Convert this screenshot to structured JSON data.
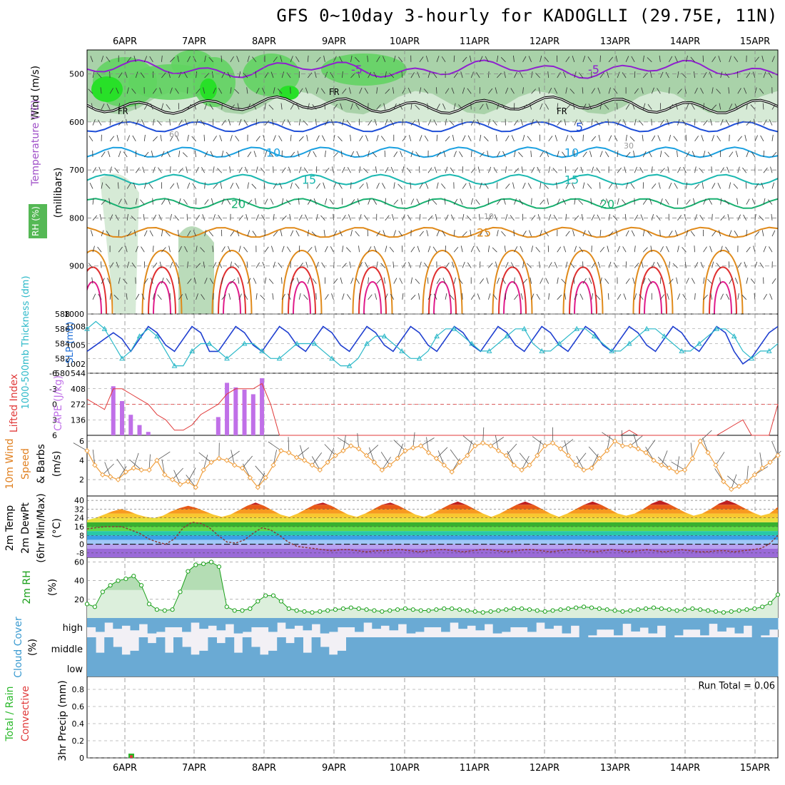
{
  "title": "GFS 0~10day 3-hourly for KADOGLLI (29.75E, 11N)",
  "colors": {
    "rh_light": "#d6ead6",
    "rh_mid": "#a9d2a9",
    "rh_green": "#5fd35f",
    "rh_bright": "#28e028",
    "temp_purple": "#8f1fcf",
    "temp_blue": "#1f4fd8",
    "temp_cyan": "#1aa0e0",
    "temp_teal": "#1ab8b0",
    "temp_green": "#18b070",
    "temp_orange": "#e08a1a",
    "temp_red": "#e03030",
    "temp_magenta": "#e01a8a",
    "freezing": "#000000",
    "slp": "#1f3fd0",
    "thickness": "#2ab8c8",
    "cape": "#c070e8",
    "lifted": "#e03a3a",
    "wind": "#f0a040",
    "dewpoint": "#8a3a3a",
    "rh2m": "#1aa01a",
    "cloud": "#6aaad4",
    "precip_total": "#2ab82a",
    "precip_conv": "#e03a3a",
    "grid": "#888888"
  },
  "chart_data": [
    {
      "type": "heatmap",
      "panel": "upper_air",
      "ylabel": "(millibars)",
      "side_labels": [
        "Wind (m/s)",
        "Temperature (°C)",
        "RH (%)"
      ],
      "rh_legend": "RH (%)",
      "pressure_ticks": [
        500,
        600,
        700,
        800,
        900,
        1000
      ],
      "ylim": [
        1000,
        450
      ],
      "isotherms": [
        {
          "label": "-5",
          "level": 490,
          "color_key": "temp_purple"
        },
        {
          "label": "5",
          "level": 610,
          "color_key": "temp_blue"
        },
        {
          "label": "10",
          "level": 663,
          "color_key": "temp_cyan"
        },
        {
          "label": "15",
          "level": 720,
          "color_key": "temp_teal"
        },
        {
          "label": "20",
          "level": 770,
          "color_key": "temp_green"
        },
        {
          "label": "25",
          "level": 830,
          "color_key": "temp_orange"
        }
      ],
      "freezing_label": "FR",
      "freezing_level_mb": 565,
      "rh_contour_labels": [
        "30",
        "10",
        "60"
      ]
    },
    {
      "type": "line",
      "panel": "slp_thickness",
      "series": [
        {
          "name": "SLP (mb)",
          "color_key": "slp",
          "values": [
            1004,
            1005,
            1006,
            1007,
            1006,
            1004,
            1006,
            1008,
            1007,
            1005,
            1004,
            1006,
            1008,
            1007,
            1004,
            1004,
            1006,
            1008,
            1007,
            1005,
            1004,
            1006,
            1008,
            1007,
            1005,
            1004,
            1006,
            1008,
            1007,
            1005,
            1004,
            1006,
            1008,
            1007,
            1005,
            1004,
            1006,
            1008,
            1007,
            1005,
            1004,
            1006,
            1008,
            1007,
            1005,
            1004,
            1006,
            1008,
            1007,
            1005,
            1004,
            1006,
            1008,
            1007,
            1005,
            1004,
            1006,
            1008,
            1007,
            1005,
            1004,
            1006,
            1008,
            1007,
            1005,
            1004,
            1006,
            1008,
            1007,
            1005,
            1004,
            1006,
            1008,
            1007,
            1004,
            1002,
            1003,
            1005,
            1007,
            1008
          ]
        },
        {
          "name": "1000-500mb thickness (dm)",
          "color_key": "thickness",
          "values": [
            586,
            587,
            586,
            584,
            582,
            583,
            585,
            586,
            585,
            583,
            581,
            581,
            583,
            584,
            584,
            583,
            582,
            583,
            584,
            584,
            583,
            582,
            582,
            583,
            584,
            584,
            584,
            583,
            582,
            581,
            581,
            582,
            584,
            585,
            585,
            584,
            583,
            582,
            582,
            583,
            585,
            586,
            586,
            585,
            584,
            583,
            583,
            584,
            585,
            586,
            586,
            584,
            583,
            583,
            584,
            585,
            586,
            586,
            585,
            584,
            583,
            583,
            584,
            585,
            586,
            586,
            585,
            584,
            583,
            583,
            584,
            585,
            586,
            586,
            585,
            583,
            582,
            583,
            583,
            584
          ]
        }
      ],
      "thickness_ticks": [
        580,
        582,
        584,
        586,
        588
      ],
      "slp_ticks": [
        1002,
        1005,
        1008
      ],
      "ylabel_left": "1000-500mb Thickness (dm)",
      "ylabel_right": "SLP (mb)"
    },
    {
      "type": "bar",
      "panel": "cape_li",
      "series": [
        {
          "name": "CAPE (J/kg)",
          "color_key": "cape",
          "values": [
            0,
            0,
            0,
            430,
            300,
            180,
            90,
            30,
            0,
            0,
            0,
            0,
            0,
            0,
            0,
            160,
            460,
            420,
            400,
            360,
            500,
            0,
            0,
            0,
            0,
            0,
            0,
            0,
            0,
            0,
            0,
            0,
            0,
            0,
            0,
            0,
            0,
            0,
            0,
            0,
            0,
            0,
            0,
            0,
            0,
            0,
            0,
            0,
            0,
            0,
            0,
            0,
            0,
            0,
            0,
            0,
            0,
            0,
            0,
            0,
            0,
            0,
            0,
            0,
            0,
            0,
            0,
            0,
            0,
            0,
            0,
            0,
            0,
            0,
            0,
            0,
            0,
            0,
            0,
            0
          ]
        },
        {
          "name": "Lifted Index",
          "color_key": "lifted",
          "values": [
            -1,
            0,
            1,
            -3,
            -3,
            -2,
            -1,
            0,
            2,
            3,
            5,
            5,
            4,
            2,
            1,
            0,
            -2,
            -3,
            -3,
            -3,
            -4,
            0,
            6,
            7,
            7,
            7,
            7,
            7,
            7,
            7,
            7,
            7,
            7,
            7,
            7,
            7,
            7,
            7,
            7,
            7,
            7,
            7,
            7,
            7,
            7,
            7,
            7,
            7,
            7,
            7,
            7,
            7,
            7,
            7,
            7,
            7,
            7,
            7,
            7,
            7,
            7,
            7,
            5,
            6,
            7,
            7,
            7,
            7,
            7,
            7,
            7,
            7,
            7,
            5,
            4,
            3,
            7,
            7,
            7,
            0
          ]
        }
      ],
      "cape_ticks": [
        136,
        272,
        408,
        544
      ],
      "li_ticks": [
        -6,
        -3,
        0,
        3,
        6
      ],
      "ylabel_left": "Lifted Index",
      "ylabel_right": "CAPE (J/kg)"
    },
    {
      "type": "line",
      "panel": "wind10m",
      "series": [
        {
          "name": "10m Wind Speed",
          "color_key": "wind",
          "values": [
            5.0,
            3.5,
            2.5,
            2.3,
            2.0,
            2.8,
            3.2,
            3.0,
            3.0,
            4.0,
            2.5,
            2.0,
            1.5,
            1.8,
            1.2,
            3.0,
            3.8,
            4.2,
            4.0,
            3.5,
            3.2,
            2.2,
            1.2,
            2.2,
            3.5,
            5.0,
            4.8,
            4.3,
            4.0,
            3.5,
            3.0,
            3.8,
            4.5,
            5.0,
            5.5,
            5.2,
            4.5,
            3.8,
            3.0,
            3.5,
            4.2,
            5.0,
            5.3,
            5.5,
            4.8,
            4.2,
            3.5,
            2.8,
            3.8,
            4.5,
            5.5,
            5.8,
            5.5,
            5.0,
            4.5,
            3.5,
            3.0,
            3.5,
            4.5,
            5.5,
            5.8,
            5.2,
            4.5,
            3.5,
            3.0,
            3.2,
            4.2,
            5.0,
            6.0,
            5.5,
            5.5,
            5.2,
            4.8,
            4.0,
            3.5,
            3.2,
            2.8,
            3.0,
            4.2,
            6.0,
            4.8,
            3.5,
            1.8,
            1.0,
            1.3,
            1.8,
            2.5,
            3.2,
            3.8,
            4.5
          ]
        }
      ],
      "ticks": [
        2,
        4,
        6
      ],
      "ylabel": "10m Wind Speed & Barbs (m/s)"
    },
    {
      "type": "area",
      "panel": "temp2m",
      "series": [
        {
          "name": "2m Temp",
          "values": [
            22,
            24,
            27,
            30,
            32,
            30,
            27,
            25,
            24,
            26,
            30,
            33,
            35,
            33,
            30,
            27,
            25,
            27,
            31,
            35,
            38,
            35,
            31,
            27,
            25,
            28,
            32,
            36,
            38,
            35,
            31,
            27,
            25,
            28,
            32,
            36,
            38,
            35,
            31,
            27,
            25,
            28,
            32,
            36,
            39,
            36,
            32,
            28,
            25,
            28,
            32,
            36,
            39,
            36,
            32,
            28,
            25,
            28,
            32,
            36,
            39,
            36,
            32,
            28,
            26,
            28,
            32,
            37,
            40,
            37,
            33,
            29,
            26,
            28,
            32,
            37,
            40,
            37,
            33,
            29,
            26,
            28,
            34
          ]
        },
        {
          "name": "2m DewPt",
          "values": [
            14,
            15,
            16,
            16,
            16,
            13,
            10,
            5,
            2,
            0,
            5,
            15,
            20,
            19,
            15,
            8,
            2,
            1,
            4,
            10,
            15,
            13,
            8,
            2,
            -2,
            -3,
            -4,
            -5,
            -6,
            -5,
            -5,
            -6,
            -7,
            -6,
            -6,
            -5,
            -5,
            -6,
            -7,
            -6,
            -5,
            -5,
            -6,
            -7,
            -6,
            -5,
            -5,
            -6,
            -7,
            -6,
            -5,
            -5,
            -6,
            -7,
            -6,
            -5,
            -5,
            -6,
            -7,
            -6,
            -5,
            -6,
            -7,
            -6,
            -5,
            -6,
            -7,
            -6,
            -5,
            -6,
            -7,
            -7,
            -6,
            -6,
            -7,
            -6,
            -5,
            -4,
            0,
            8
          ]
        }
      ],
      "ticks": [
        -8,
        0,
        8,
        16,
        24,
        32,
        40
      ],
      "ylabel": "2m Temp 2m DewPt (6hr Min/Max) (°C)"
    },
    {
      "type": "area",
      "panel": "rh2m",
      "series": [
        {
          "name": "2m RH",
          "color_key": "rh2m",
          "values": [
            15,
            12,
            28,
            35,
            40,
            42,
            45,
            35,
            15,
            9,
            8,
            9,
            28,
            50,
            57,
            58,
            60,
            55,
            12,
            8,
            8,
            10,
            18,
            24,
            24,
            18,
            10,
            8,
            7,
            6,
            7,
            8,
            9,
            10,
            11,
            10,
            9,
            8,
            7,
            8,
            9,
            10,
            9,
            8,
            8,
            9,
            10,
            10,
            9,
            8,
            7,
            6,
            7,
            8,
            9,
            10,
            10,
            9,
            8,
            7,
            8,
            9,
            10,
            11,
            12,
            11,
            10,
            9,
            8,
            7,
            8,
            9,
            10,
            11,
            10,
            9,
            8,
            9,
            10,
            9,
            8,
            7,
            6,
            7,
            8,
            9,
            10,
            12,
            16,
            25
          ]
        }
      ],
      "ticks": [
        20,
        40,
        60
      ],
      "ylabel": "2m RH (%)"
    },
    {
      "type": "bar",
      "panel": "cloud",
      "categories": [
        "high",
        "middle",
        "low"
      ],
      "ylabel": "Cloud Cover (%)"
    },
    {
      "type": "bar",
      "panel": "precip",
      "series": [
        {
          "name": "Total / Rain",
          "color_key": "precip_total",
          "values": [
            0,
            0,
            0,
            0,
            0,
            0.05
          ]
        },
        {
          "name": "Convective",
          "color_key": "precip_conv",
          "values": [
            0,
            0,
            0,
            0,
            0,
            0.03
          ]
        }
      ],
      "ticks": [
        0,
        0.2,
        0.4,
        0.6,
        0.8
      ],
      "ylabel": "3hr Precip (mm)",
      "run_total": "Run Total = 0.06"
    }
  ],
  "dates": [
    "6APR",
    "7APR",
    "8APR",
    "9APR",
    "10APR",
    "11APR",
    "12APR",
    "13APR",
    "14APR",
    "15APR"
  ],
  "labels": {
    "upper_wind": "Wind (m/s)",
    "upper_temp": "Temperature (°C)",
    "upper_rh": "RH (%)",
    "upper_mb": "(millibars)",
    "thk": "1000-500mb Thickness (dm)",
    "slp": "SLP (mb)",
    "li": "Lifted Index",
    "cape": "CAPE (J/kg)",
    "wind_a": "10m Wind",
    "wind_b": "Speed",
    "wind_c": "& Barbs",
    "wind_d": "(m/s)",
    "t_a": "2m Temp",
    "t_b": "2m DewPt",
    "t_c": "(6hr Min/Max)",
    "t_d": "(°C)",
    "rh_a": "2m RH",
    "rh_b": "(%)",
    "cc_a": "Cloud Cover",
    "cc_b": "(%)",
    "pr_a": "Total / Rain",
    "pr_b": "Convective",
    "pr_c": "3hr Precip (mm)"
  }
}
